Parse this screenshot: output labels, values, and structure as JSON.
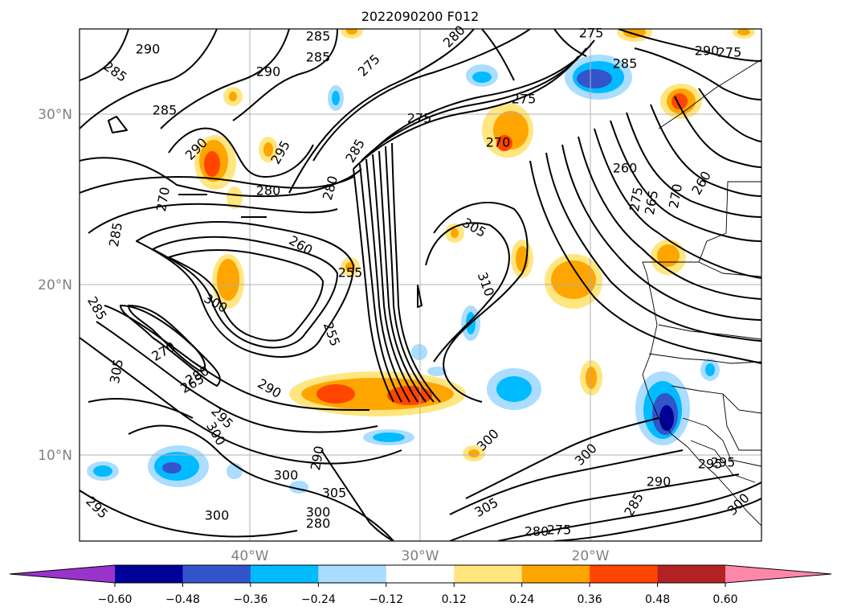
{
  "title": "2022090200 F012",
  "lat_labels": [
    "30°N",
    "20°N",
    "10°N"
  ],
  "lon_labels": [
    "40°W",
    "30°W",
    "20°W"
  ],
  "colorbar": {
    "ticks": [
      "−0.60",
      "−0.48",
      "−0.36",
      "−0.24",
      "−0.12",
      "0.12",
      "0.24",
      "0.36",
      "0.48",
      "0.60"
    ],
    "colors": [
      "#9933cc",
      "#000099",
      "#3355cc",
      "#00bbff",
      "#aaddff",
      "#ffffff",
      "#ffe680",
      "#ffa500",
      "#ff4500",
      "#b22222",
      "#ff88aa"
    ]
  },
  "contour_labels": [
    "290",
    "285",
    "285",
    "290",
    "285",
    "285",
    "275",
    "280",
    "275",
    "270",
    "275",
    "285",
    "290",
    "275",
    "275",
    "285",
    "280",
    "260",
    "255",
    "290",
    "295",
    "280",
    "270",
    "275",
    "265",
    "270",
    "260",
    "285",
    "260",
    "305",
    "255",
    "310",
    "300",
    "285",
    "270",
    "265",
    "305",
    "280",
    "295",
    "290",
    "300",
    "300",
    "300",
    "290",
    "300",
    "305",
    "295",
    "285",
    "300",
    "280",
    "305",
    "290",
    "300",
    "280",
    "275",
    "295",
    "300",
    "295"
  ],
  "colors": {
    "land_outline": "#000000",
    "contour": "#000000",
    "grid": "#b0b0b0",
    "negative": "#00bbff",
    "positive": "#ffa500"
  }
}
